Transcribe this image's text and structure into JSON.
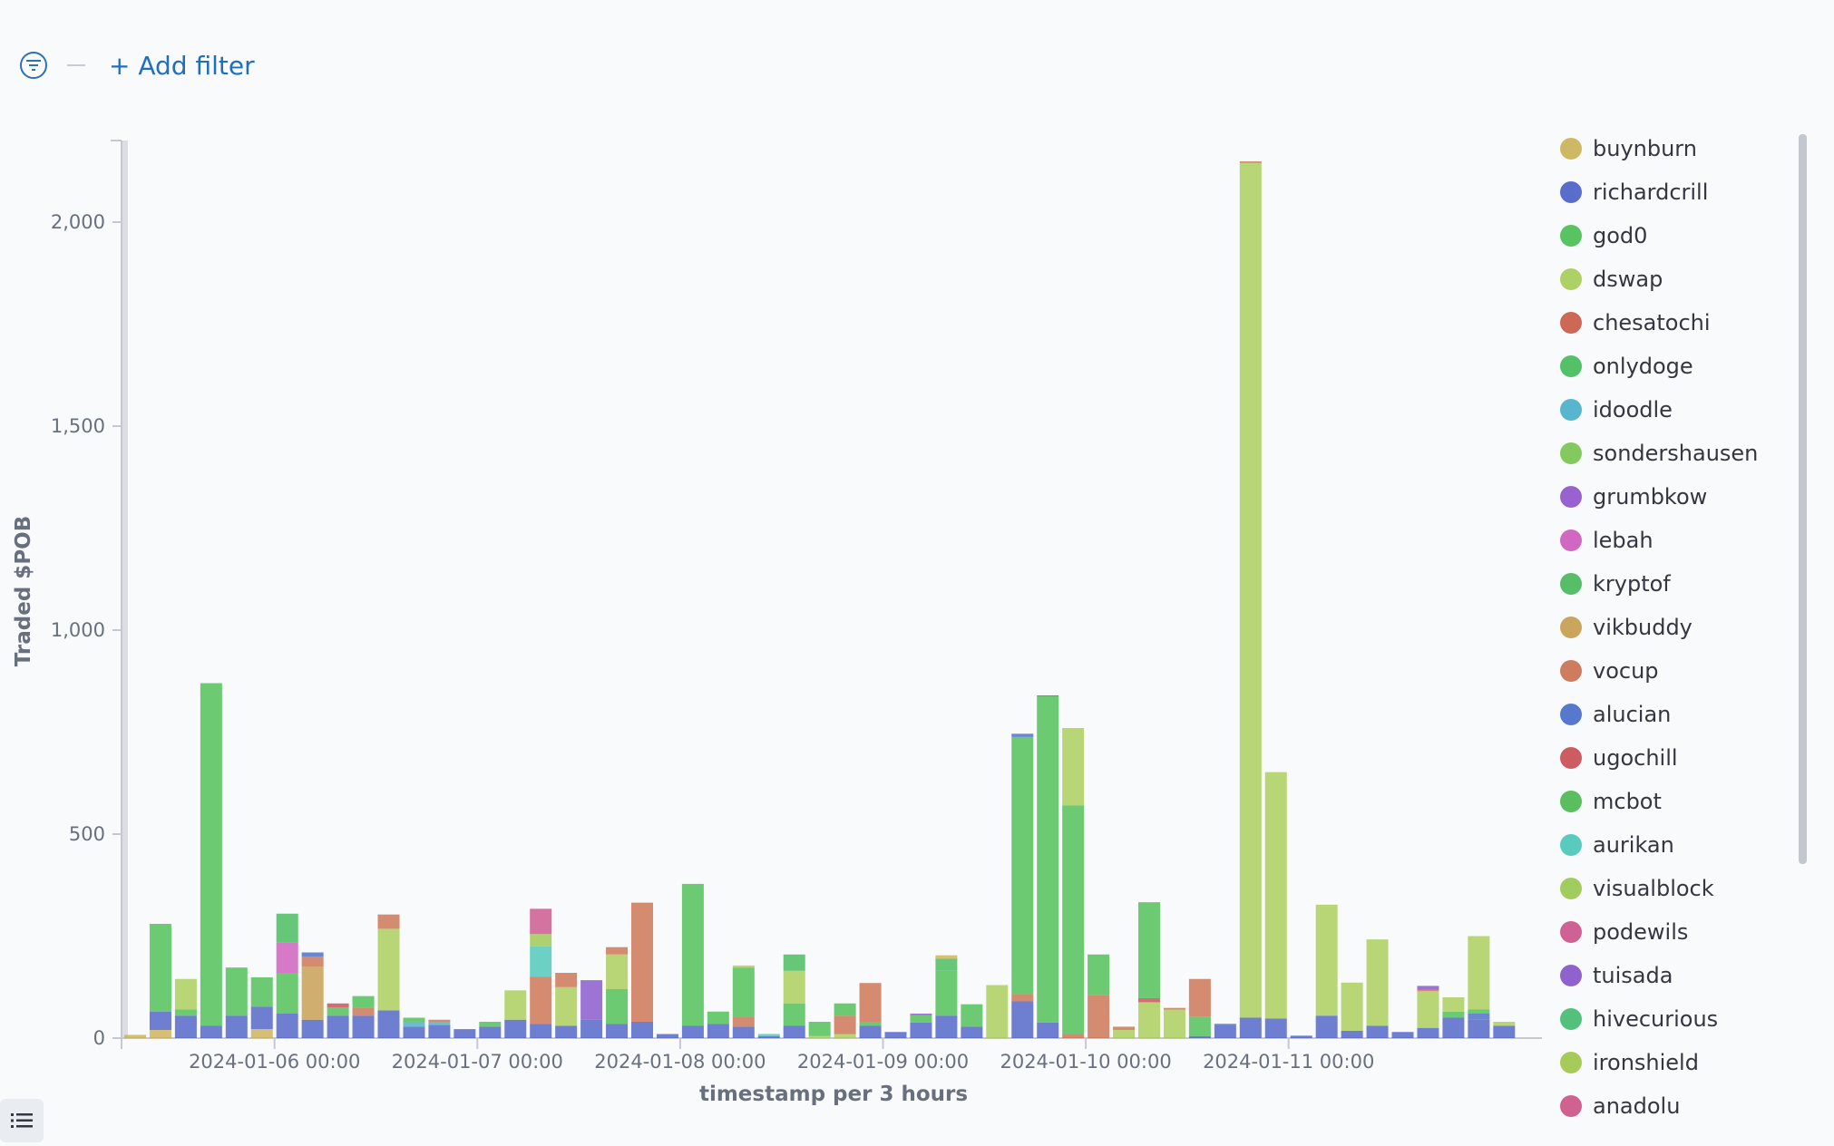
{
  "filter_bar": {
    "add_filter_label": "+ Add filter",
    "icon": "filter-menu-icon",
    "accent_color": "#1f6fbf"
  },
  "legend_toggle": {
    "icon": "list-icon"
  },
  "chart_data": {
    "type": "bar",
    "stacked": true,
    "xlabel": "timestamp per 3 hours",
    "ylabel": "Traded $POB",
    "ylim": [
      0,
      2200
    ],
    "yticks": [
      0,
      500,
      1000,
      1500,
      2000
    ],
    "ytick_labels": [
      "0",
      "500",
      "1,000",
      "1,500",
      "2,000"
    ],
    "x_tick_labels": [
      "2024-01-06 00:00",
      "2024-01-07 00:00",
      "2024-01-08 00:00",
      "2024-01-09 00:00",
      "2024-01-10 00:00",
      "2024-01-11 00:00"
    ],
    "x_tick_index": [
      6,
      14,
      22,
      30,
      38,
      46
    ],
    "legend_position": "right",
    "grid": false,
    "legend": [
      {
        "name": "buynburn",
        "color": "#c8ab48"
      },
      {
        "name": "richardcrill",
        "color": "#3f54c2"
      },
      {
        "name": "god0",
        "color": "#3cba45"
      },
      {
        "name": "dswap",
        "color": "#a1c94a"
      },
      {
        "name": "chesatochi",
        "color": "#c64e3a"
      },
      {
        "name": "onlydoge",
        "color": "#36b64e"
      },
      {
        "name": "idoodle",
        "color": "#3ba8c4"
      },
      {
        "name": "sondershausen",
        "color": "#6fbf41"
      },
      {
        "name": "grumbkow",
        "color": "#8a46c8"
      },
      {
        "name": "lebah",
        "color": "#c94eb6"
      },
      {
        "name": "kryptof",
        "color": "#39b34f"
      },
      {
        "name": "vikbuddy",
        "color": "#c2953f"
      },
      {
        "name": "vocup",
        "color": "#c76542"
      },
      {
        "name": "alucian",
        "color": "#3a62c4"
      },
      {
        "name": "ugochill",
        "color": "#c53e46"
      },
      {
        "name": "mcbot",
        "color": "#3db341"
      },
      {
        "name": "aurikan",
        "color": "#3dc2b3"
      },
      {
        "name": "visualblock",
        "color": "#94c342"
      },
      {
        "name": "podewils",
        "color": "#c84681"
      },
      {
        "name": "tuisada",
        "color": "#7c47c6"
      },
      {
        "name": "hivecurious",
        "color": "#36b567"
      },
      {
        "name": "ironshield",
        "color": "#99c23b"
      },
      {
        "name": "anadolu",
        "color": "#c8467a"
      }
    ],
    "bars": [
      {
        "segments": [
          {
            "series": "buynburn",
            "value": 8
          }
        ]
      },
      {
        "segments": [
          {
            "series": "buynburn",
            "value": 20
          },
          {
            "series": "richardcrill",
            "value": 45
          },
          {
            "series": "god0",
            "value": 215
          }
        ]
      },
      {
        "segments": [
          {
            "series": "richardcrill",
            "value": 55
          },
          {
            "series": "god0",
            "value": 15
          },
          {
            "series": "dswap",
            "value": 75
          }
        ]
      },
      {
        "segments": [
          {
            "series": "richardcrill",
            "value": 30
          },
          {
            "series": "god0",
            "value": 840
          }
        ]
      },
      {
        "segments": [
          {
            "series": "richardcrill",
            "value": 55
          },
          {
            "series": "god0",
            "value": 118
          }
        ]
      },
      {
        "segments": [
          {
            "series": "buynburn",
            "value": 22
          },
          {
            "series": "richardcrill",
            "value": 55
          },
          {
            "series": "god0",
            "value": 72
          }
        ]
      },
      {
        "segments": [
          {
            "series": "richardcrill",
            "value": 60
          },
          {
            "series": "god0",
            "value": 100
          },
          {
            "series": "lebah",
            "value": 75
          },
          {
            "series": "onlydoge",
            "value": 70
          }
        ]
      },
      {
        "segments": [
          {
            "series": "richardcrill",
            "value": 45
          },
          {
            "series": "vikbuddy",
            "value": 130
          },
          {
            "series": "vocup",
            "value": 25
          },
          {
            "series": "alucian",
            "value": 10
          }
        ]
      },
      {
        "segments": [
          {
            "series": "richardcrill",
            "value": 55
          },
          {
            "series": "god0",
            "value": 20
          },
          {
            "series": "ugochill",
            "value": 10
          }
        ]
      },
      {
        "segments": [
          {
            "series": "richardcrill",
            "value": 55
          },
          {
            "series": "vocup",
            "value": 20
          },
          {
            "series": "god0",
            "value": 28
          }
        ]
      },
      {
        "segments": [
          {
            "series": "richardcrill",
            "value": 68
          },
          {
            "series": "dswap",
            "value": 200
          },
          {
            "series": "vocup",
            "value": 35
          }
        ]
      },
      {
        "segments": [
          {
            "series": "richardcrill",
            "value": 28
          },
          {
            "series": "idoodle",
            "value": 12
          },
          {
            "series": "god0",
            "value": 10
          }
        ]
      },
      {
        "segments": [
          {
            "series": "richardcrill",
            "value": 32
          },
          {
            "series": "idoodle",
            "value": 8
          },
          {
            "series": "vocup",
            "value": 5
          }
        ]
      },
      {
        "segments": [
          {
            "series": "richardcrill",
            "value": 22
          }
        ]
      },
      {
        "segments": [
          {
            "series": "richardcrill",
            "value": 28
          },
          {
            "series": "god0",
            "value": 12
          }
        ]
      },
      {
        "segments": [
          {
            "series": "richardcrill",
            "value": 45
          },
          {
            "series": "dswap",
            "value": 72
          }
        ]
      },
      {
        "segments": [
          {
            "series": "richardcrill",
            "value": 35
          },
          {
            "series": "vocup",
            "value": 115
          },
          {
            "series": "aurikan",
            "value": 75
          },
          {
            "series": "visualblock",
            "value": 30
          },
          {
            "series": "podewils",
            "value": 62
          }
        ]
      },
      {
        "segments": [
          {
            "series": "richardcrill",
            "value": 30
          },
          {
            "series": "dswap",
            "value": 95
          },
          {
            "series": "vocup",
            "value": 35
          }
        ]
      },
      {
        "segments": [
          {
            "series": "richardcrill",
            "value": 45
          },
          {
            "series": "tuisada",
            "value": 97
          }
        ]
      },
      {
        "segments": [
          {
            "series": "richardcrill",
            "value": 35
          },
          {
            "series": "god0",
            "value": 85
          },
          {
            "series": "dswap",
            "value": 85
          },
          {
            "series": "vocup",
            "value": 18
          }
        ]
      },
      {
        "segments": [
          {
            "series": "richardcrill",
            "value": 40
          },
          {
            "series": "vocup",
            "value": 292
          }
        ]
      },
      {
        "segments": [
          {
            "series": "richardcrill",
            "value": 10
          }
        ]
      },
      {
        "segments": [
          {
            "series": "richardcrill",
            "value": 30
          },
          {
            "series": "god0",
            "value": 348
          }
        ]
      },
      {
        "segments": [
          {
            "series": "richardcrill",
            "value": 35
          },
          {
            "series": "god0",
            "value": 30
          }
        ]
      },
      {
        "segments": [
          {
            "series": "richardcrill",
            "value": 28
          },
          {
            "series": "vocup",
            "value": 25
          },
          {
            "series": "god0",
            "value": 120
          },
          {
            "series": "dswap",
            "value": 5
          }
        ]
      },
      {
        "segments": [
          {
            "series": "richardcrill",
            "value": 5
          },
          {
            "series": "aurikan",
            "value": 5
          }
        ]
      },
      {
        "segments": [
          {
            "series": "richardcrill",
            "value": 30
          },
          {
            "series": "god0",
            "value": 55
          },
          {
            "series": "dswap",
            "value": 80
          },
          {
            "series": "onlydoge",
            "value": 40
          }
        ]
      },
      {
        "segments": [
          {
            "series": "dswap",
            "value": 5
          },
          {
            "series": "god0",
            "value": 35
          }
        ]
      },
      {
        "segments": [
          {
            "series": "dswap",
            "value": 10
          },
          {
            "series": "vocup",
            "value": 45
          },
          {
            "series": "god0",
            "value": 30
          }
        ]
      },
      {
        "segments": [
          {
            "series": "richardcrill",
            "value": 30
          },
          {
            "series": "god0",
            "value": 10
          },
          {
            "series": "vocup",
            "value": 95
          }
        ]
      },
      {
        "segments": [
          {
            "series": "richardcrill",
            "value": 15
          }
        ]
      },
      {
        "segments": [
          {
            "series": "richardcrill",
            "value": 38
          },
          {
            "series": "god0",
            "value": 18
          },
          {
            "series": "tuisada",
            "value": 4
          }
        ]
      },
      {
        "segments": [
          {
            "series": "richardcrill",
            "value": 55
          },
          {
            "series": "god0",
            "value": 110
          },
          {
            "series": "onlydoge",
            "value": 30
          },
          {
            "series": "buynburn",
            "value": 8
          }
        ]
      },
      {
        "segments": [
          {
            "series": "richardcrill",
            "value": 28
          },
          {
            "series": "god0",
            "value": 55
          }
        ]
      },
      {
        "segments": [
          {
            "series": "dswap",
            "value": 130
          }
        ]
      },
      {
        "segments": [
          {
            "series": "richardcrill",
            "value": 90
          },
          {
            "series": "vocup",
            "value": 18
          },
          {
            "series": "god0",
            "value": 630
          },
          {
            "series": "alucian",
            "value": 8
          }
        ]
      },
      {
        "segments": [
          {
            "series": "richardcrill",
            "value": 38
          },
          {
            "series": "god0",
            "value": 800
          },
          {
            "series": "alucian",
            "value": 2
          }
        ]
      },
      {
        "segments": [
          {
            "series": "vocup",
            "value": 10
          },
          {
            "series": "god0",
            "value": 560
          },
          {
            "series": "dswap",
            "value": 190
          }
        ]
      },
      {
        "segments": [
          {
            "series": "vocup",
            "value": 105
          },
          {
            "series": "god0",
            "value": 100
          }
        ]
      },
      {
        "segments": [
          {
            "series": "dswap",
            "value": 20
          },
          {
            "series": "vocup",
            "value": 8
          }
        ]
      },
      {
        "segments": [
          {
            "series": "dswap",
            "value": 88
          },
          {
            "series": "ugochill",
            "value": 10
          },
          {
            "series": "god0",
            "value": 235
          }
        ]
      },
      {
        "segments": [
          {
            "series": "dswap",
            "value": 70
          },
          {
            "series": "vocup",
            "value": 4
          }
        ]
      },
      {
        "segments": [
          {
            "series": "richardcrill",
            "value": 5
          },
          {
            "series": "god0",
            "value": 48
          },
          {
            "series": "vocup",
            "value": 92
          }
        ]
      },
      {
        "segments": [
          {
            "series": "richardcrill",
            "value": 32
          },
          {
            "series": "alucian",
            "value": 3
          }
        ]
      },
      {
        "segments": [
          {
            "series": "richardcrill",
            "value": 50
          },
          {
            "series": "dswap",
            "value": 2095
          },
          {
            "series": "vocup",
            "value": 4
          }
        ]
      },
      {
        "segments": [
          {
            "series": "richardcrill",
            "value": 48
          },
          {
            "series": "dswap",
            "value": 604
          }
        ]
      },
      {
        "segments": [
          {
            "series": "richardcrill",
            "value": 6
          }
        ]
      },
      {
        "segments": [
          {
            "series": "richardcrill",
            "value": 55
          },
          {
            "series": "dswap",
            "value": 272
          }
        ]
      },
      {
        "segments": [
          {
            "series": "richardcrill",
            "value": 18
          },
          {
            "series": "dswap",
            "value": 118
          }
        ]
      },
      {
        "segments": [
          {
            "series": "richardcrill",
            "value": 30
          },
          {
            "series": "dswap",
            "value": 212
          }
        ]
      },
      {
        "segments": [
          {
            "series": "richardcrill",
            "value": 15
          }
        ]
      },
      {
        "segments": [
          {
            "series": "richardcrill",
            "value": 25
          },
          {
            "series": "dswap",
            "value": 90
          },
          {
            "series": "vocup",
            "value": 3
          },
          {
            "series": "tuisada",
            "value": 10
          }
        ]
      },
      {
        "segments": [
          {
            "series": "richardcrill",
            "value": 50
          },
          {
            "series": "god0",
            "value": 15
          },
          {
            "series": "dswap",
            "value": 35
          }
        ]
      },
      {
        "segments": [
          {
            "series": "richardcrill",
            "value": 45
          },
          {
            "series": "alucian",
            "value": 15
          },
          {
            "series": "god0",
            "value": 10
          },
          {
            "series": "dswap",
            "value": 180
          }
        ]
      },
      {
        "segments": [
          {
            "series": "richardcrill",
            "value": 30
          },
          {
            "series": "dswap",
            "value": 10
          }
        ]
      }
    ]
  }
}
